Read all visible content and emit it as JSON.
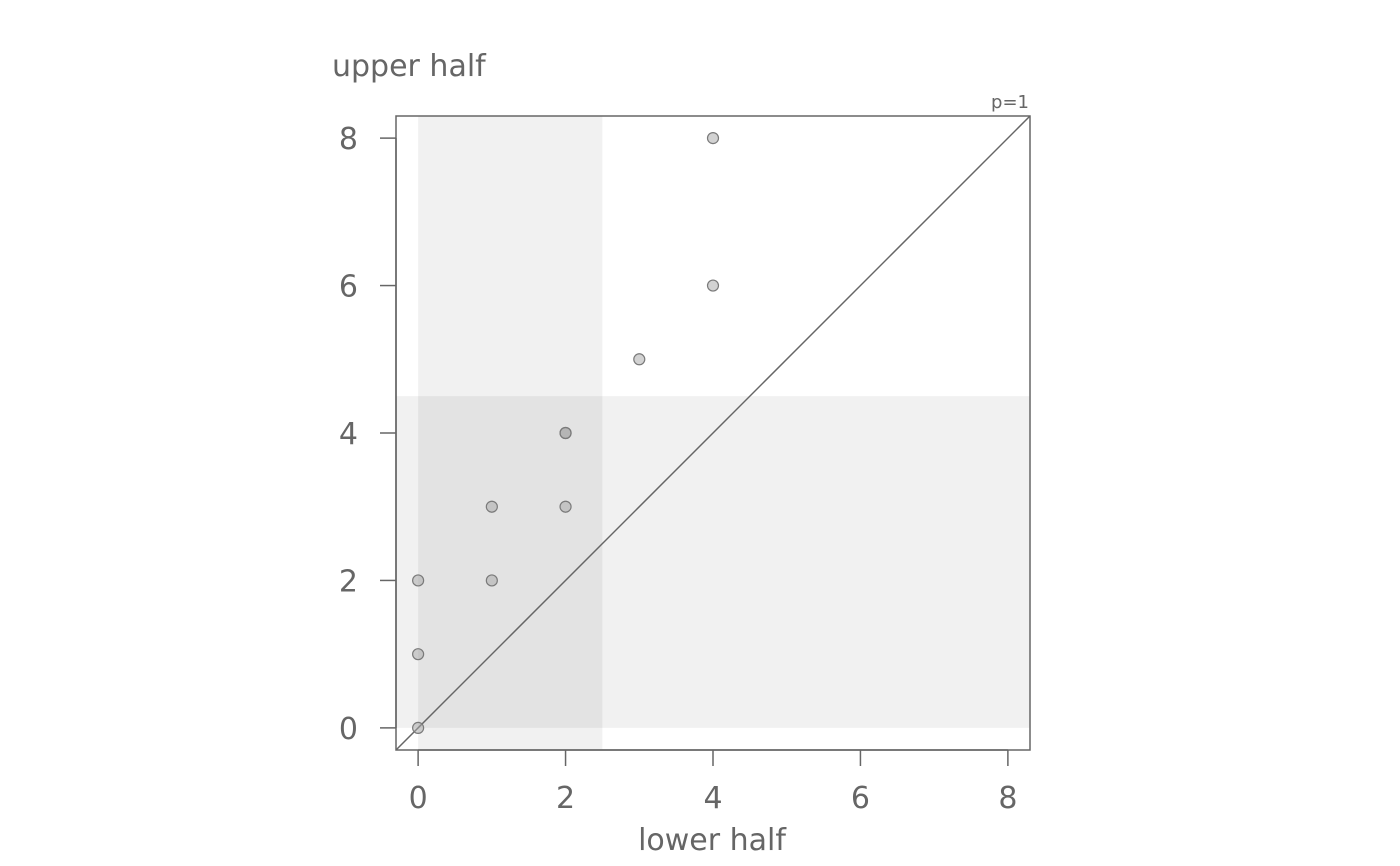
{
  "chart_data": {
    "type": "scatter",
    "ylabel": "upper half",
    "xlabel": "lower half",
    "annotation": "p=1",
    "xlim": [
      -0.3,
      8.3
    ],
    "ylim": [
      -0.3,
      8.3
    ],
    "x_ticks": [
      0,
      2,
      4,
      6,
      8
    ],
    "y_ticks": [
      0,
      2,
      4,
      6,
      8
    ],
    "grid": false,
    "diagonal_reference_line": true,
    "shaded_bands": [
      {
        "axis": "x",
        "from": 0,
        "to": 2.5
      },
      {
        "axis": "y",
        "from": 0,
        "to": 4.5
      }
    ],
    "points": [
      {
        "x": 0,
        "y": 0
      },
      {
        "x": 0,
        "y": 1
      },
      {
        "x": 0,
        "y": 2
      },
      {
        "x": 1,
        "y": 2
      },
      {
        "x": 1,
        "y": 3
      },
      {
        "x": 2,
        "y": 3
      },
      {
        "x": 2,
        "y": 4
      },
      {
        "x": 2,
        "y": 4
      },
      {
        "x": 3,
        "y": 5
      },
      {
        "x": 4,
        "y": 6
      },
      {
        "x": 4,
        "y": 8
      }
    ],
    "colors": {
      "axis": "#666666",
      "band": "#000000",
      "band_opacity": 0.055,
      "point_fill": "#a6a6a6",
      "point_fill_opacity": 0.5,
      "point_stroke": "#7a7a7a"
    }
  }
}
